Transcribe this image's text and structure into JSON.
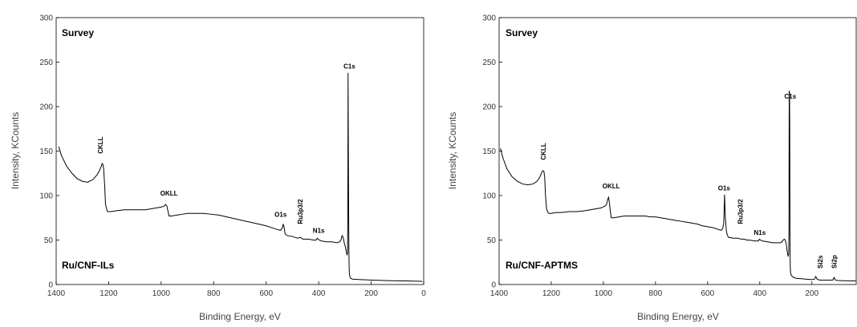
{
  "chart_data": [
    {
      "type": "line",
      "title": "Survey",
      "sample_label": "Ru/CNF-ILs",
      "xlabel": "Binding Energy, eV",
      "ylabel": "Intensity, KCounts",
      "xlim": [
        1400,
        0
      ],
      "ylim": [
        0,
        300
      ],
      "x_reversed": true,
      "x_ticks": [
        "1400",
        "1200",
        "1000",
        "800",
        "600",
        "400",
        "200",
        "0"
      ],
      "y_ticks": [
        "0",
        "50",
        "100",
        "150",
        "200",
        "250",
        "300"
      ],
      "grid": false,
      "series": [
        {
          "x": [
            1390,
            1380,
            1360,
            1340,
            1320,
            1300,
            1280,
            1260,
            1245,
            1235,
            1228,
            1225,
            1222,
            1219,
            1215,
            1212,
            1205,
            1190,
            1170,
            1140,
            1110,
            1080,
            1060,
            1040,
            1020,
            1000,
            990,
            983,
            978,
            976,
            970,
            960,
            940,
            920,
            900,
            870,
            840,
            810,
            780,
            750,
            720,
            690,
            660,
            630,
            600,
            580,
            560,
            545,
            538,
            535,
            532,
            528,
            520,
            500,
            490,
            480,
            470,
            460,
            450,
            440,
            420,
            410,
            405,
            402,
            398,
            390,
            370,
            350,
            330,
            320,
            315,
            312,
            310,
            306,
            302,
            298,
            294,
            292,
            290,
            289,
            288,
            287,
            286,
            285,
            284,
            283,
            282,
            281,
            280,
            278,
            270,
            260,
            240,
            220,
            200,
            180,
            160,
            140,
            120,
            100,
            80,
            60,
            40,
            20,
            5
          ],
          "y": [
            155,
            145,
            133,
            125,
            119,
            116,
            115,
            118,
            123,
            128,
            133,
            136,
            135,
            130,
            110,
            90,
            82,
            82,
            83,
            84,
            84,
            84,
            84,
            85,
            86,
            87,
            88,
            90,
            88,
            85,
            77,
            77,
            78,
            79,
            80,
            80,
            80,
            79,
            78,
            76,
            74,
            72,
            70,
            68,
            66,
            64,
            62,
            61,
            64,
            68,
            65,
            57,
            55,
            54,
            53,
            52,
            53,
            51,
            51,
            51,
            50,
            50,
            52,
            51,
            50,
            49,
            48,
            48,
            47,
            48,
            50,
            54,
            55,
            52,
            46,
            42,
            36,
            33,
            36,
            80,
            238,
            157,
            90,
            40,
            20,
            12,
            10,
            9,
            8,
            7,
            6,
            5.8,
            5.5,
            5.3,
            5,
            4.8,
            4.6,
            4.4,
            4.3,
            4.2,
            4.1,
            4,
            3.8,
            3.7,
            3.5
          ]
        }
      ],
      "annotations": [
        {
          "text": "C1s",
          "x": 283,
          "y": 243,
          "orientation": "horizontal"
        },
        {
          "text": "CKLL",
          "x": 1222,
          "y": 147,
          "orientation": "vertical"
        },
        {
          "text": "OKLL",
          "x": 970,
          "y": 100,
          "orientation": "horizontal"
        },
        {
          "text": "O1s",
          "x": 545,
          "y": 76,
          "orientation": "horizontal"
        },
        {
          "text": "Ru3p3/2",
          "x": 462,
          "y": 68,
          "orientation": "vertical"
        },
        {
          "text": "N1s",
          "x": 400,
          "y": 58,
          "orientation": "horizontal"
        }
      ]
    },
    {
      "type": "line",
      "title": "Survey",
      "sample_label": "Ru/CNF-APTMS",
      "xlabel": "Binding Energy, eV",
      "ylabel": "Intensity, KCounts",
      "xlim": [
        1400,
        30
      ],
      "ylim": [
        0,
        300
      ],
      "x_reversed": true,
      "x_ticks": [
        "1400",
        "1200",
        "1000",
        "800",
        "600",
        "400",
        "200"
      ],
      "y_ticks": [
        "0",
        "50",
        "100",
        "150",
        "200",
        "250",
        "300"
      ],
      "grid": false,
      "series": [
        {
          "x": [
            1395,
            1385,
            1370,
            1350,
            1330,
            1310,
            1290,
            1270,
            1255,
            1245,
            1238,
            1232,
            1228,
            1225,
            1222,
            1218,
            1213,
            1208,
            1200,
            1180,
            1160,
            1130,
            1100,
            1070,
            1050,
            1030,
            1010,
            995,
            988,
            983,
            980,
            977,
            974,
            970,
            960,
            940,
            920,
            900,
            880,
            860,
            840,
            820,
            800,
            780,
            760,
            740,
            720,
            700,
            680,
            660,
            640,
            620,
            600,
            580,
            560,
            548,
            542,
            538,
            535,
            532,
            528,
            525,
            520,
            500,
            485,
            470,
            460,
            450,
            440,
            420,
            410,
            405,
            402,
            398,
            390,
            370,
            350,
            330,
            320,
            315,
            310,
            306,
            302,
            298,
            296,
            293,
            291,
            289,
            288,
            287,
            286,
            285,
            284,
            283,
            282,
            281,
            280,
            278,
            275,
            270,
            260,
            240,
            220,
            200,
            190,
            185,
            180,
            170,
            150,
            130,
            120,
            115,
            110,
            100,
            80,
            60,
            40,
            32
          ],
          "y": [
            153,
            142,
            130,
            121,
            116,
            113,
            112,
            113,
            116,
            120,
            125,
            128,
            127,
            120,
            100,
            85,
            81,
            80,
            80,
            81,
            81,
            82,
            82,
            83,
            84,
            85,
            86,
            88,
            90,
            96,
            98,
            92,
            84,
            75,
            75,
            76,
            77,
            77,
            77,
            77,
            77,
            76,
            76,
            75,
            74,
            73,
            72,
            71,
            70,
            69,
            68,
            66,
            65,
            64,
            62,
            61,
            63,
            70,
            101,
            75,
            60,
            56,
            53,
            52,
            52,
            51,
            51,
            50,
            50,
            49,
            49,
            49,
            51,
            50,
            49,
            48,
            47,
            47,
            47,
            48,
            50,
            51,
            50,
            45,
            40,
            34,
            32,
            34,
            60,
            218,
            215,
            180,
            60,
            20,
            14,
            12,
            11,
            10,
            9,
            8,
            7,
            6.5,
            6,
            5.5,
            6,
            9,
            6,
            5,
            5,
            5,
            5,
            8,
            5,
            4.5,
            4.3,
            4.2,
            4.1,
            4
          ]
        }
      ],
      "annotations": [
        {
          "text": "C1s",
          "x": 283,
          "y": 209,
          "orientation": "horizontal"
        },
        {
          "text": "CKLL",
          "x": 1222,
          "y": 140,
          "orientation": "vertical"
        },
        {
          "text": "OKLL",
          "x": 970,
          "y": 108,
          "orientation": "horizontal"
        },
        {
          "text": "O1s",
          "x": 537,
          "y": 106,
          "orientation": "horizontal"
        },
        {
          "text": "Ru3p3/2",
          "x": 465,
          "y": 68,
          "orientation": "vertical"
        },
        {
          "text": "N1s",
          "x": 400,
          "y": 56,
          "orientation": "horizontal"
        },
        {
          "text": "Si2s",
          "x": 160,
          "y": 18,
          "orientation": "vertical"
        },
        {
          "text": "Si2p",
          "x": 105,
          "y": 18,
          "orientation": "vertical"
        }
      ]
    }
  ]
}
